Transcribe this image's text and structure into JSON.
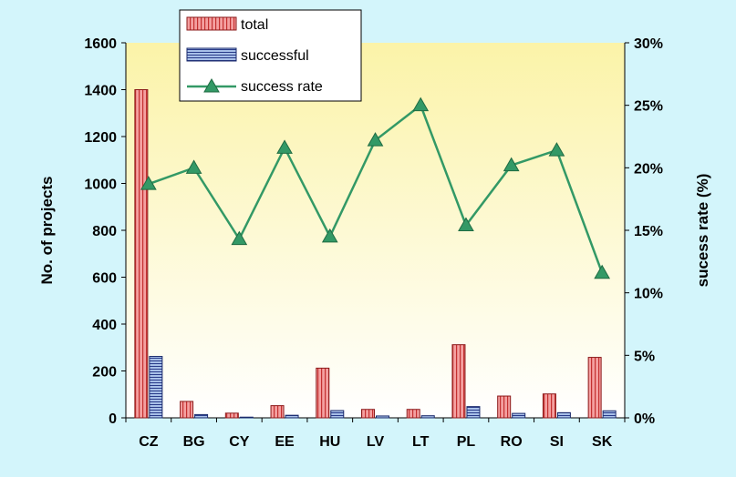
{
  "chart_data": {
    "type": "bar",
    "categories": [
      "CZ",
      "BG",
      "CY",
      "EE",
      "HU",
      "LV",
      "LT",
      "PL",
      "RO",
      "SI",
      "SK"
    ],
    "series": [
      {
        "name": "total",
        "type": "bar",
        "axis": "left",
        "color": "#f4a0a0",
        "values": [
          1400,
          70,
          20,
          52,
          212,
          36,
          36,
          312,
          93,
          102,
          258
        ]
      },
      {
        "name": "successful",
        "type": "bar",
        "axis": "left",
        "color": "#a8c0e8",
        "values": [
          262,
          14,
          3,
          11,
          31,
          8,
          9,
          48,
          19,
          22,
          30
        ]
      },
      {
        "name": "success rate",
        "type": "line",
        "axis": "right",
        "color": "#339966",
        "values": [
          18.7,
          20.0,
          14.3,
          21.6,
          14.5,
          22.2,
          25.0,
          15.4,
          20.2,
          21.4,
          11.6
        ]
      }
    ],
    "ylabel": "No. of projects",
    "y2label": "sucess rate (%)",
    "ylim": [
      0,
      1600
    ],
    "y2lim": [
      0,
      30
    ],
    "yticks": [
      "0",
      "200",
      "400",
      "600",
      "800",
      "1000",
      "1200",
      "1400",
      "1600"
    ],
    "y2ticks": [
      "0%",
      "5%",
      "10%",
      "15%",
      "20%",
      "25%",
      "30%"
    ],
    "legend": {
      "placement": "top-left",
      "entries": [
        "total",
        "successful",
        "success rate"
      ]
    },
    "plot_background": [
      "#fbf3a8",
      "#ffffff"
    ]
  }
}
